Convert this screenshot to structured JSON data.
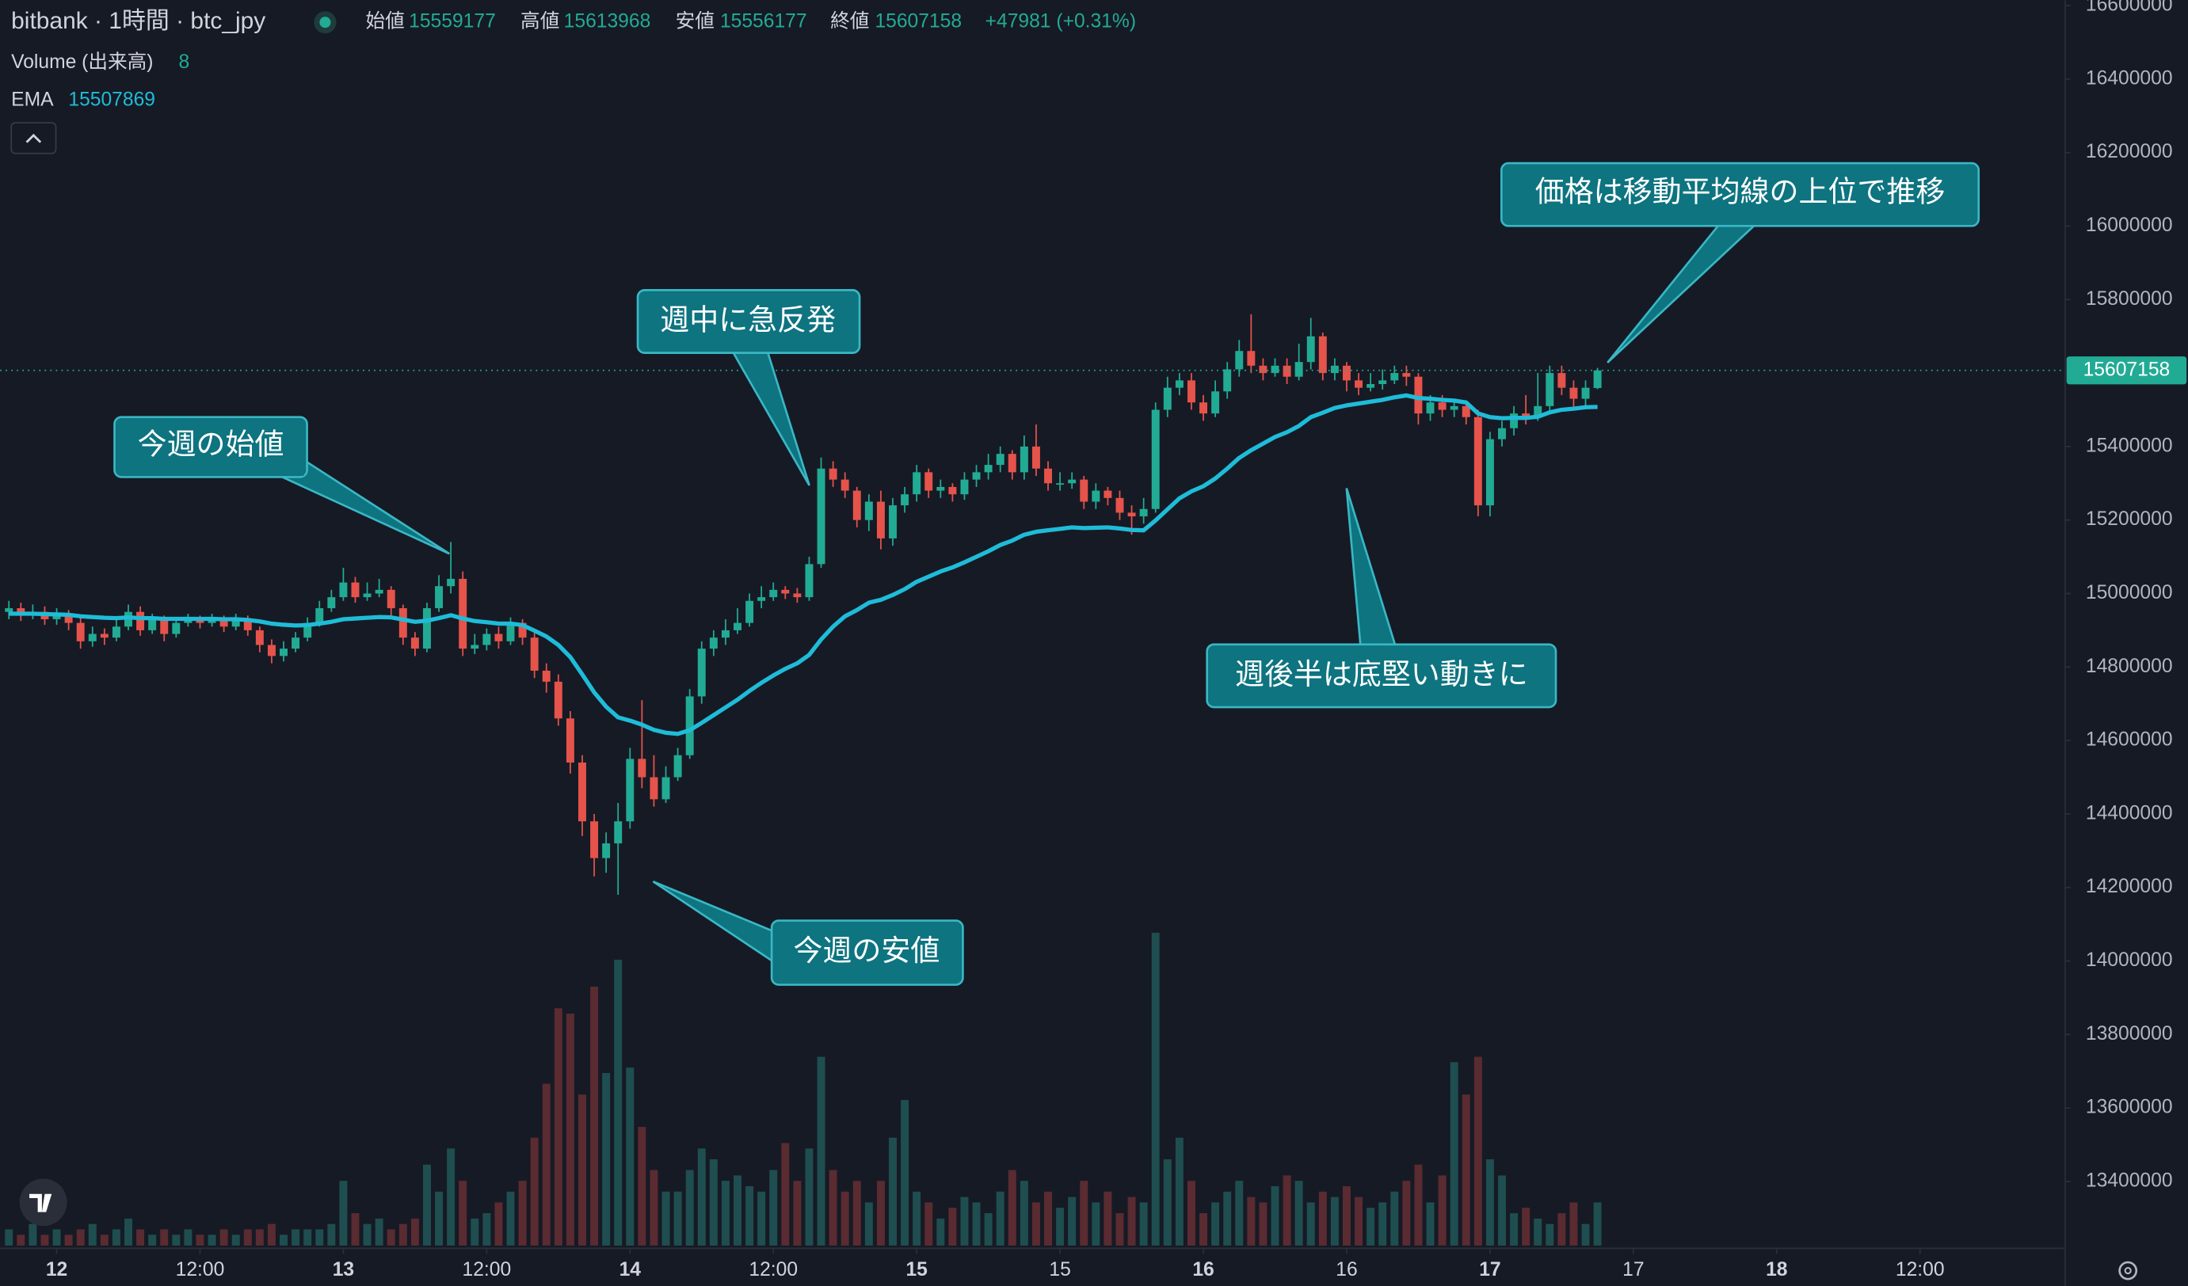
{
  "chart_data": {
    "type": "candlestick",
    "title": "bitbank · 1時間 · btc_jpy",
    "ohlc_labels": [
      "始値",
      "高値",
      "安値",
      "終値"
    ],
    "change_label": "+47981 (+0.31%)",
    "volume_label": "Volume (出来高)",
    "ema_label": "EMA",
    "up_color": "#22ab94",
    "down_color": "#e5534b",
    "volume_up_color": "#1f4e50",
    "volume_down_color": "#5a2b31",
    "ema_color": "#1fbcd8",
    "x": [
      -4,
      -3,
      -2,
      -1,
      0,
      1,
      2,
      3,
      4,
      5,
      6,
      7,
      8,
      9,
      10,
      11,
      12,
      13,
      14,
      15,
      16,
      17,
      18,
      19,
      20,
      21,
      22,
      23,
      24,
      25,
      26,
      27,
      28,
      29,
      30,
      31,
      32,
      33,
      34,
      35,
      36,
      37,
      38,
      39,
      40,
      41,
      42,
      43,
      44,
      45,
      46,
      47,
      48,
      49,
      50,
      51,
      52,
      53,
      54,
      55,
      56,
      57,
      58,
      59,
      60,
      61,
      62,
      63,
      64,
      65,
      66,
      67,
      68,
      69,
      70,
      71,
      72,
      73,
      74,
      75,
      76,
      77,
      78,
      79,
      80,
      81,
      82,
      83,
      84,
      85,
      86,
      87,
      88,
      89,
      90,
      91,
      92,
      93,
      94,
      95,
      96,
      97,
      98,
      99,
      100,
      101,
      102,
      103,
      104,
      105,
      106,
      107,
      108,
      109,
      110,
      111,
      112,
      113,
      114,
      115,
      116,
      117,
      118,
      119,
      120,
      121,
      122,
      123,
      124,
      125,
      126,
      127,
      128,
      129
    ],
    "open": [
      14950000,
      14960000,
      14940000,
      14950000,
      14930000,
      14940000,
      14920000,
      14870000,
      14890000,
      14880000,
      14910000,
      14950000,
      14900000,
      14930000,
      14890000,
      14920000,
      14930000,
      14920000,
      14930000,
      14910000,
      14930000,
      14900000,
      14860000,
      14830000,
      14850000,
      14880000,
      14920000,
      14960000,
      14990000,
      15030000,
      14990000,
      15000000,
      15010000,
      14960000,
      14880000,
      14850000,
      14960000,
      15020000,
      15040000,
      14850000,
      14860000,
      14890000,
      14870000,
      14920000,
      14880000,
      14790000,
      14760000,
      14660000,
      14540000,
      14380000,
      14280000,
      14320000,
      14380000,
      14550000,
      14500000,
      14440000,
      14500000,
      14560000,
      14720000,
      14850000,
      14880000,
      14900000,
      14920000,
      14980000,
      14990000,
      15010000,
      15000000,
      14990000,
      15080000,
      15340000,
      15310000,
      15280000,
      15200000,
      15250000,
      15150000,
      15240000,
      15270000,
      15330000,
      15280000,
      15290000,
      15270000,
      15310000,
      15330000,
      15350000,
      15380000,
      15330000,
      15400000,
      15340000,
      15300000,
      15300000,
      15310000,
      15250000,
      15280000,
      15260000,
      15220000,
      15210000,
      15230000,
      15500000,
      15560000,
      15580000,
      15520000,
      15490000,
      15550000,
      15610000,
      15660000,
      15620000,
      15600000,
      15620000,
      15590000,
      15630000,
      15700000,
      15600000,
      15620000,
      15580000,
      15560000,
      15570000,
      15580000,
      15600000,
      15590000,
      15490000,
      15520000,
      15500000,
      15510000,
      15480000,
      15240000,
      15420000,
      15450000,
      15490000,
      15480000,
      15510000,
      15600000,
      15560000,
      15530000,
      15559177
    ],
    "high": [
      14980000,
      14975000,
      14970000,
      14965000,
      14960000,
      14955000,
      14935000,
      14910000,
      14905000,
      14930000,
      14970000,
      14965000,
      14945000,
      14940000,
      14935000,
      14945000,
      14940000,
      14945000,
      14940000,
      14945000,
      14940000,
      14910000,
      14875000,
      14870000,
      14895000,
      14935000,
      14980000,
      15010000,
      15070000,
      15045000,
      15030000,
      15040000,
      15020000,
      14970000,
      14895000,
      14975000,
      15050000,
      15140000,
      15060000,
      14890000,
      14905000,
      14910000,
      14935000,
      14930000,
      14895000,
      14810000,
      14780000,
      14680000,
      14560000,
      14400000,
      14350000,
      14430000,
      14580000,
      14710000,
      14560000,
      14530000,
      14580000,
      14740000,
      14870000,
      14900000,
      14930000,
      14960000,
      15000000,
      15020000,
      15030000,
      15020000,
      15015000,
      15100000,
      15370000,
      15360000,
      15330000,
      15290000,
      15270000,
      15280000,
      15260000,
      15290000,
      15350000,
      15340000,
      15310000,
      15300000,
      15330000,
      15350000,
      15380000,
      15400000,
      15390000,
      15430000,
      15460000,
      15360000,
      15330000,
      15330000,
      15320000,
      15300000,
      15290000,
      15280000,
      15240000,
      15260000,
      15520000,
      15590000,
      15600000,
      15600000,
      15540000,
      15580000,
      15630000,
      15690000,
      15760000,
      15640000,
      15640000,
      15640000,
      15680000,
      15750000,
      15710000,
      15640000,
      15630000,
      15600000,
      15600000,
      15610000,
      15620000,
      15620000,
      15600000,
      15540000,
      15540000,
      15530000,
      15520000,
      15500000,
      15440000,
      15470000,
      15510000,
      15540000,
      15600000,
      15620000,
      15620000,
      15580000,
      15580000,
      15613968
    ],
    "low": [
      14930000,
      14925000,
      14930000,
      14915000,
      14915000,
      14900000,
      14850000,
      14855000,
      14860000,
      14870000,
      14900000,
      14885000,
      14890000,
      14870000,
      14880000,
      14910000,
      14905000,
      14910000,
      14895000,
      14900000,
      14885000,
      14840000,
      14810000,
      14815000,
      14840000,
      14870000,
      14910000,
      14950000,
      14980000,
      14975000,
      14980000,
      14990000,
      14940000,
      14860000,
      14830000,
      14840000,
      14950000,
      15000000,
      14830000,
      14835000,
      14845000,
      14850000,
      14860000,
      14860000,
      14770000,
      14730000,
      14640000,
      14510000,
      14340000,
      14230000,
      14240000,
      14180000,
      14360000,
      14470000,
      14420000,
      14430000,
      14490000,
      14550000,
      14700000,
      14830000,
      14860000,
      14890000,
      14910000,
      14960000,
      14980000,
      14985000,
      14975000,
      14980000,
      15070000,
      15290000,
      15260000,
      15180000,
      15170000,
      15120000,
      15130000,
      15220000,
      15250000,
      15260000,
      15260000,
      15250000,
      15255000,
      15290000,
      15310000,
      15330000,
      15310000,
      15310000,
      15320000,
      15280000,
      15280000,
      15285000,
      15230000,
      15230000,
      15240000,
      15200000,
      15160000,
      15190000,
      15220000,
      15480000,
      15540000,
      15500000,
      15470000,
      15480000,
      15530000,
      15590000,
      15600000,
      15580000,
      15590000,
      15570000,
      15580000,
      15610000,
      15580000,
      15580000,
      15550000,
      15540000,
      15550000,
      15555000,
      15570000,
      15565000,
      15460000,
      15470000,
      15480000,
      15480000,
      15460000,
      15210000,
      15210000,
      15400000,
      15430000,
      15460000,
      15470000,
      15490000,
      15540000,
      15500000,
      15510000,
      15556177
    ],
    "close": [
      14960000,
      14940000,
      14950000,
      14930000,
      14940000,
      14920000,
      14870000,
      14890000,
      14880000,
      14910000,
      14950000,
      14900000,
      14930000,
      14890000,
      14920000,
      14930000,
      14920000,
      14930000,
      14910000,
      14930000,
      14900000,
      14860000,
      14830000,
      14850000,
      14880000,
      14920000,
      14960000,
      14990000,
      15030000,
      14990000,
      15000000,
      15010000,
      14960000,
      14880000,
      14850000,
      14960000,
      15020000,
      15040000,
      14850000,
      14860000,
      14890000,
      14870000,
      14920000,
      14880000,
      14790000,
      14760000,
      14660000,
      14540000,
      14380000,
      14280000,
      14320000,
      14380000,
      14550000,
      14500000,
      14440000,
      14500000,
      14560000,
      14720000,
      14850000,
      14880000,
      14900000,
      14920000,
      14980000,
      14990000,
      15010000,
      15000000,
      14990000,
      15080000,
      15340000,
      15310000,
      15280000,
      15200000,
      15250000,
      15150000,
      15240000,
      15270000,
      15330000,
      15280000,
      15290000,
      15270000,
      15310000,
      15330000,
      15350000,
      15380000,
      15330000,
      15400000,
      15340000,
      15300000,
      15300000,
      15310000,
      15250000,
      15280000,
      15260000,
      15220000,
      15210000,
      15230000,
      15500000,
      15560000,
      15580000,
      15520000,
      15490000,
      15550000,
      15610000,
      15660000,
      15620000,
      15600000,
      15620000,
      15590000,
      15630000,
      15700000,
      15600000,
      15620000,
      15580000,
      15560000,
      15570000,
      15580000,
      15600000,
      15590000,
      15490000,
      15520000,
      15500000,
      15510000,
      15480000,
      15240000,
      15420000,
      15450000,
      15490000,
      15480000,
      15510000,
      15600000,
      15560000,
      15530000,
      15560000,
      15607158
    ],
    "volume": [
      3,
      2,
      4,
      2,
      3,
      2,
      3,
      4,
      2,
      3,
      5,
      3,
      2,
      3,
      2,
      3,
      2,
      2,
      3,
      2,
      3,
      3,
      4,
      2,
      3,
      3,
      3,
      4,
      12,
      6,
      4,
      5,
      3,
      4,
      5,
      15,
      10,
      18,
      12,
      5,
      6,
      8,
      10,
      12,
      20,
      30,
      44,
      43,
      28,
      48,
      32,
      53,
      33,
      22,
      14,
      10,
      10,
      14,
      18,
      16,
      12,
      13,
      11,
      10,
      14,
      19,
      12,
      18,
      35,
      14,
      10,
      12,
      8,
      12,
      20,
      27,
      10,
      8,
      5,
      7,
      9,
      8,
      6,
      10,
      14,
      12,
      8,
      10,
      7,
      9,
      12,
      8,
      10,
      6,
      9,
      8,
      58,
      16,
      20,
      12,
      6,
      8,
      10,
      12,
      9,
      8,
      11,
      13,
      12,
      8,
      10,
      9,
      11,
      9,
      7,
      8,
      10,
      12,
      15,
      8,
      13,
      34,
      28,
      35,
      16,
      13,
      6,
      7,
      5,
      4,
      6,
      8,
      4,
      8
    ],
    "ema": [
      14945000,
      14945000,
      14945000,
      14944000,
      14943000,
      14942000,
      14938000,
      14936000,
      14934000,
      14933000,
      14935000,
      14933000,
      14933000,
      14931000,
      14931000,
      14931000,
      14931000,
      14931000,
      14930000,
      14930000,
      14928000,
      14924000,
      14918000,
      14915000,
      14913000,
      14914000,
      14918000,
      14923000,
      14930000,
      14932000,
      14934000,
      14936000,
      14935000,
      14929000,
      14923000,
      14926000,
      14933000,
      14941000,
      14932000,
      14925000,
      14922000,
      14918000,
      14918000,
      14914000,
      14899000,
      14883000,
      14860000,
      14827000,
      14780000,
      14731000,
      14692000,
      14663000,
      14654000,
      14643000,
      14629000,
      14621000,
      14618000,
      14628000,
      14648000,
      14669000,
      14690000,
      14711000,
      14735000,
      14757000,
      14777000,
      14795000,
      14810000,
      14833000,
      14875000,
      14910000,
      14938000,
      14955000,
      14975000,
      14983000,
      14996000,
      15012000,
      15032000,
      15046000,
      15060000,
      15071000,
      15085000,
      15100000,
      15115000,
      15132000,
      15144000,
      15160000,
      15168000,
      15172000,
      15176000,
      15180000,
      15178000,
      15179000,
      15180000,
      15177000,
      15173000,
      15172000,
      15199000,
      15229000,
      15259000,
      15278000,
      15292000,
      15313000,
      15340000,
      15369000,
      15390000,
      15408000,
      15426000,
      15439000,
      15456000,
      15480000,
      15492000,
      15505000,
      15512000,
      15517000,
      15522000,
      15527000,
      15534000,
      15539000,
      15532000,
      15530000,
      15527000,
      15525000,
      15520000,
      15490000,
      15480000,
      15477000,
      15478000,
      15478000,
      15481000,
      15493000,
      15500000,
      15503000,
      15507000,
      15507869
    ],
    "xlim": [
      -4.74,
      168.15
    ],
    "ylim": [
      13225500,
      16615200
    ],
    "volume_ylim": [
      0,
      60
    ],
    "yticks": [
      13400000,
      13600000,
      13800000,
      14000000,
      14200000,
      14400000,
      14600000,
      14800000,
      15000000,
      15200000,
      15400000,
      15600000,
      15800000,
      16000000,
      16200000,
      16400000,
      16600000
    ],
    "xticks": [
      {
        "value": 0,
        "label": "12"
      },
      {
        "value": 12,
        "label": "12:00"
      },
      {
        "value": 24,
        "label": "13"
      },
      {
        "value": 36,
        "label": "12:00"
      },
      {
        "value": 48,
        "label": "14"
      },
      {
        "value": 60,
        "label": "12:00"
      },
      {
        "value": 72,
        "label": "15"
      },
      {
        "value": 84,
        "label": "15"
      },
      {
        "value": 96,
        "label": "16"
      },
      {
        "value": 108,
        "label": "16"
      },
      {
        "value": 120,
        "label": "17"
      },
      {
        "value": 132,
        "label": "17"
      },
      {
        "value": 144,
        "label": "18"
      },
      {
        "value": 156,
        "label": "12:00"
      }
    ],
    "annotations": [
      "今週の始値",
      "週中に急反発",
      "今週の安値",
      "週後半は底堅い動きに",
      "価格は移動平均線の上位で推移"
    ]
  }
}
